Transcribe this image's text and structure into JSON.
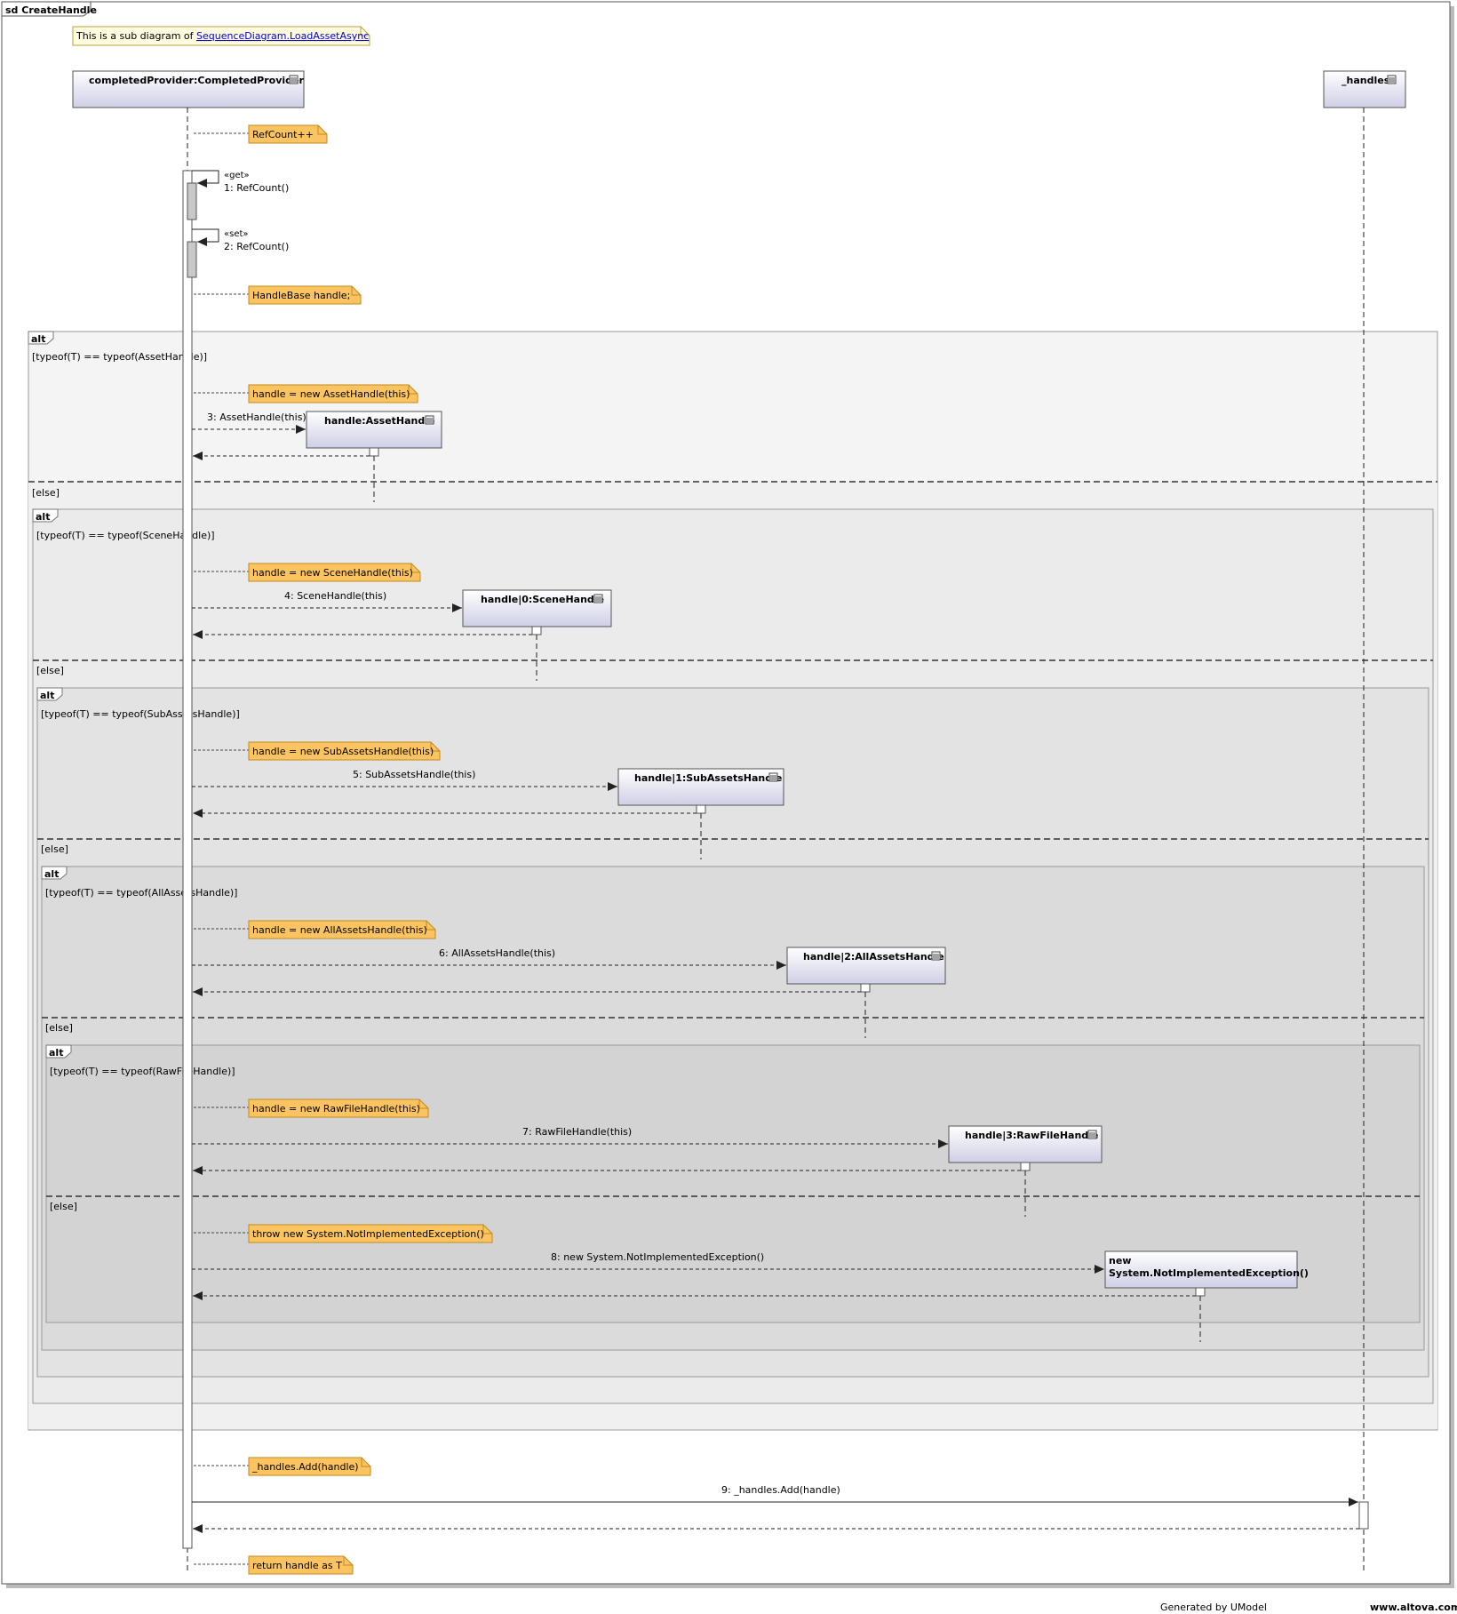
{
  "frame": {
    "title": "sd CreateHandle"
  },
  "subdiagram_note": {
    "prefix": "This is a sub diagram of ",
    "link": "SequenceDiagram.LoadAssetAsync"
  },
  "lifelines": {
    "provider": "completedProvider:CompletedProvider",
    "handles": "_handles:"
  },
  "notes": {
    "refcount": "RefCount++",
    "handlebase": "HandleBase handle;",
    "new_asset": "handle = new AssetHandle(this)",
    "new_scene": "handle = new SceneHandle(this)",
    "new_subassets": "handle = new SubAssetsHandle(this)",
    "new_allassets": "handle = new AllAssetsHandle(this)",
    "new_rawfile": "handle = new RawFileHandle(this)",
    "throw": "throw new System.NotImplementedException()",
    "add": "_handles.Add(handle)",
    "ret": "return handle as T"
  },
  "messages": {
    "m1_stereo": "«get»",
    "m1": "1: RefCount()",
    "m2_stereo": "«set»",
    "m2": "2: RefCount()",
    "m3": "3: AssetHandle(this)",
    "m4": "4: SceneHandle(this)",
    "m5": "5: SubAssetsHandle(this)",
    "m6": "6: AllAssetsHandle(this)",
    "m7": "7: RawFileHandle(this)",
    "m8": "8: new System.NotImplementedException()",
    "m9": "9: _handles.Add(handle)"
  },
  "created_objects": {
    "asset": "handle:AssetHandle",
    "scene": "handle|0:SceneHandle",
    "subassets": "handle|1:SubAssetsHandle",
    "allassets": "handle|2:AllAssetsHandle",
    "rawfile": "handle|3:RawFileHandle",
    "exc_line1": "new",
    "exc_line2": "System.NotImplementedException()"
  },
  "fragments": {
    "operator": "alt",
    "guard1": "[typeof(T) == typeof(AssetHandle)]",
    "guard2": "[typeof(T) == typeof(SceneHandle)]",
    "guard3": "[typeof(T) == typeof(SubAssetsHandle)]",
    "guard4": "[typeof(T) == typeof(AllAssetsHandle)]",
    "guard5": "[typeof(T) == typeof(RawFileHandle)]",
    "else": "[else]"
  },
  "footer": {
    "generated": "Generated by UModel",
    "site": "www.altova.com"
  },
  "colors": {
    "note_fill": "#fcc460",
    "note_stroke": "#c08a20",
    "stereo": "#8a7a00",
    "link": "#0000cc"
  }
}
